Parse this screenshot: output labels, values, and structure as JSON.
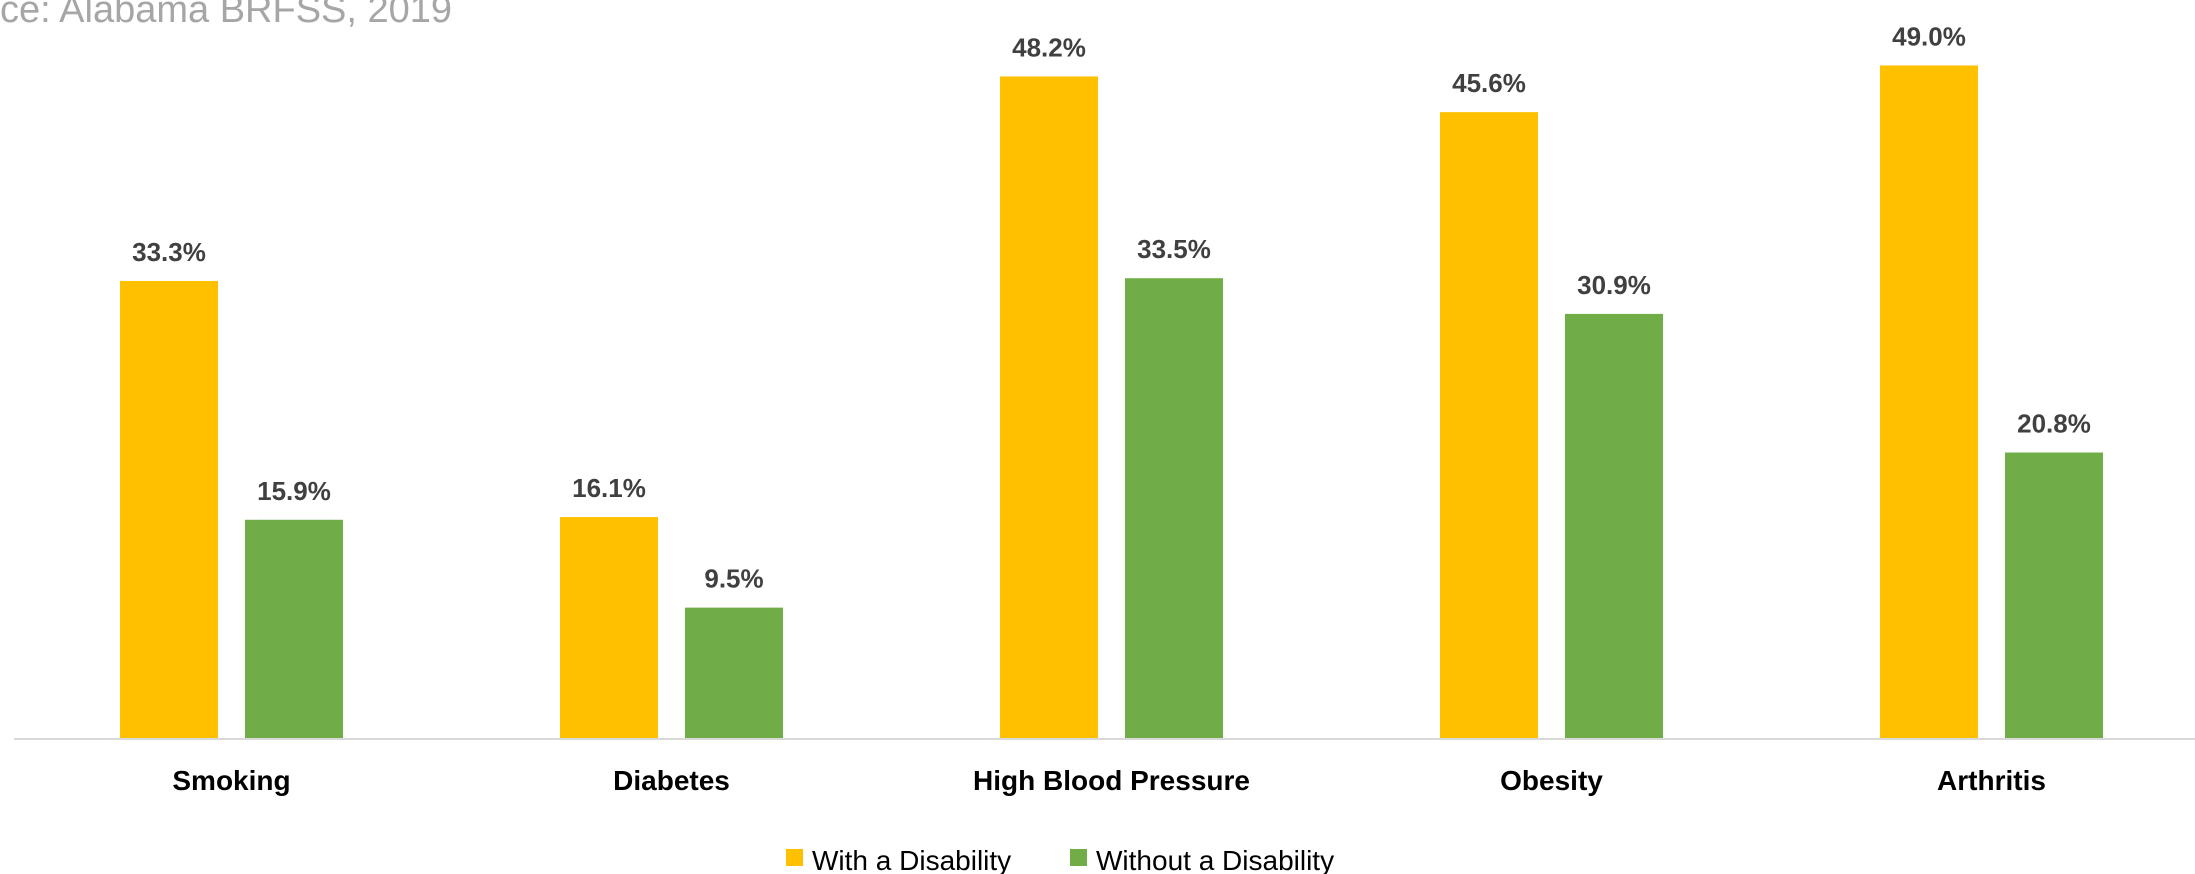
{
  "source": "ce: Alabama BRFSS, 2019",
  "chart_data": {
    "type": "bar",
    "categories": [
      "Smoking",
      "Diabetes",
      "High Blood Pressure",
      "Obesity",
      "Arthritis"
    ],
    "series": [
      {
        "name": "With a Disability",
        "color": "#ffc000",
        "values": [
          33.3,
          16.1,
          48.2,
          45.6,
          49.0
        ],
        "labels": [
          "33.3%",
          "16.1%",
          "48.2%",
          "45.6%",
          "49.0%"
        ]
      },
      {
        "name": "Without a Disability",
        "color": "#70ad47",
        "values": [
          15.9,
          9.5,
          33.5,
          30.9,
          20.8
        ],
        "labels": [
          "15.9%",
          "9.5%",
          "33.5%",
          "30.9%",
          "20.8%"
        ]
      }
    ],
    "ylim": [
      0,
      50
    ],
    "grid": false,
    "legend_position": "bottom",
    "axis_color": "#d9d9d9"
  }
}
